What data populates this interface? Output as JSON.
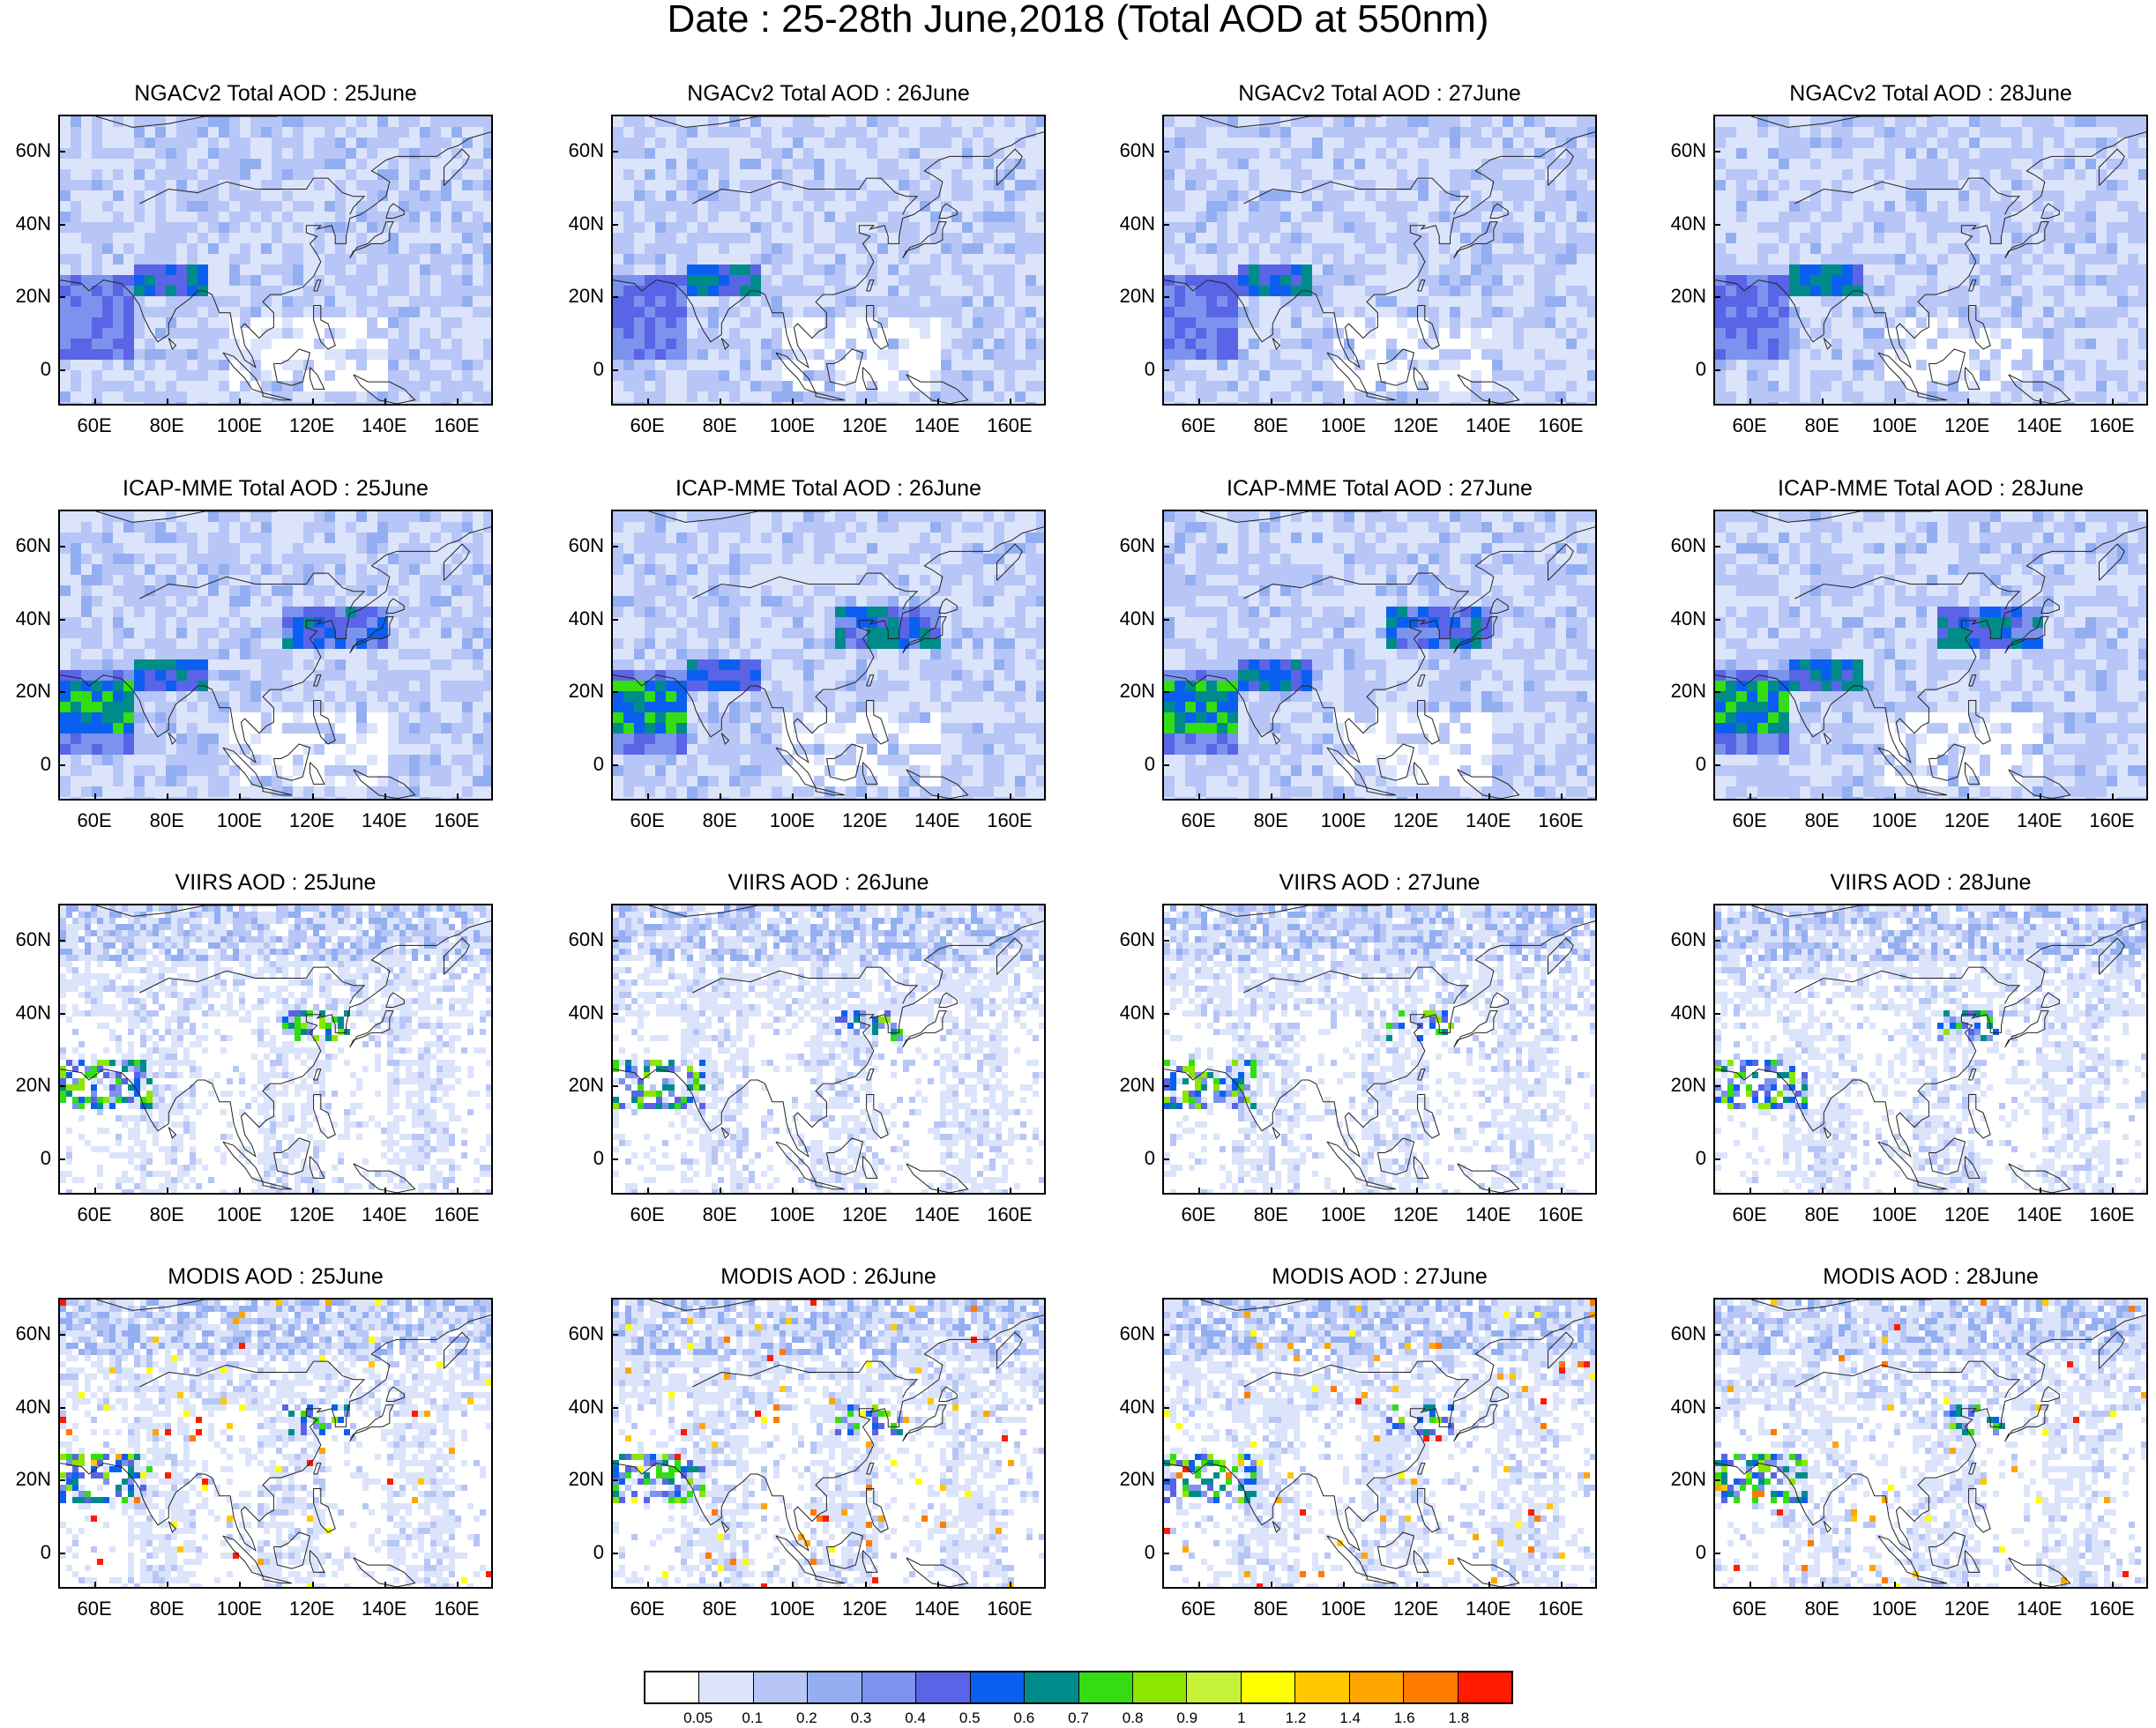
{
  "title": "Date : 25-28th June,2018 (Total AOD at 550nm)",
  "panels": [
    {
      "row": "NGACv2",
      "title": "NGACv2 Total AOD : 25June"
    },
    {
      "row": "NGACv2",
      "title": "NGACv2 Total AOD : 26June"
    },
    {
      "row": "NGACv2",
      "title": "NGACv2 Total AOD : 27June"
    },
    {
      "row": "NGACv2",
      "title": "NGACv2 Total AOD : 28June"
    },
    {
      "row": "ICAP-MME",
      "title": "ICAP-MME Total AOD : 25June"
    },
    {
      "row": "ICAP-MME",
      "title": "ICAP-MME Total AOD : 26June"
    },
    {
      "row": "ICAP-MME",
      "title": "ICAP-MME Total AOD : 27June"
    },
    {
      "row": "ICAP-MME",
      "title": "ICAP-MME Total AOD : 28June"
    },
    {
      "row": "VIIRS",
      "title": "VIIRS AOD : 25June"
    },
    {
      "row": "VIIRS",
      "title": "VIIRS AOD : 26June"
    },
    {
      "row": "VIIRS",
      "title": "VIIRS AOD : 27June"
    },
    {
      "row": "VIIRS",
      "title": "VIIRS AOD : 28June"
    },
    {
      "row": "MODIS",
      "title": "MODIS AOD : 25June"
    },
    {
      "row": "MODIS",
      "title": "MODIS AOD : 26June"
    },
    {
      "row": "MODIS",
      "title": "MODIS AOD : 27June"
    },
    {
      "row": "MODIS",
      "title": "MODIS AOD : 28June"
    }
  ],
  "lat_ticks": [
    "60N",
    "40N",
    "20N",
    "0"
  ],
  "lat_values": [
    60,
    40,
    20,
    0
  ],
  "lon_ticks": [
    "60E",
    "80E",
    "100E",
    "120E",
    "140E",
    "160E"
  ],
  "lon_values": [
    60,
    80,
    100,
    120,
    140,
    160
  ],
  "map_extent": {
    "lon_min": 50,
    "lon_max": 170,
    "lat_min": -10,
    "lat_max": 70
  },
  "colorbar": {
    "colors": [
      "#ffffff",
      "#dce4fb",
      "#b7c6f6",
      "#93aef1",
      "#7b93ee",
      "#5a64e6",
      "#0b5ff0",
      "#008b8b",
      "#33dd11",
      "#8be600",
      "#c6f23a",
      "#ffff00",
      "#ffc800",
      "#ffa500",
      "#ff7a00",
      "#ff1a00"
    ],
    "labels": [
      "0.05",
      "0.1",
      "0.2",
      "0.3",
      "0.4",
      "0.5",
      "0.6",
      "0.7",
      "0.8",
      "0.9",
      "1",
      "1.2",
      "1.4",
      "1.6",
      "1.8"
    ]
  }
}
